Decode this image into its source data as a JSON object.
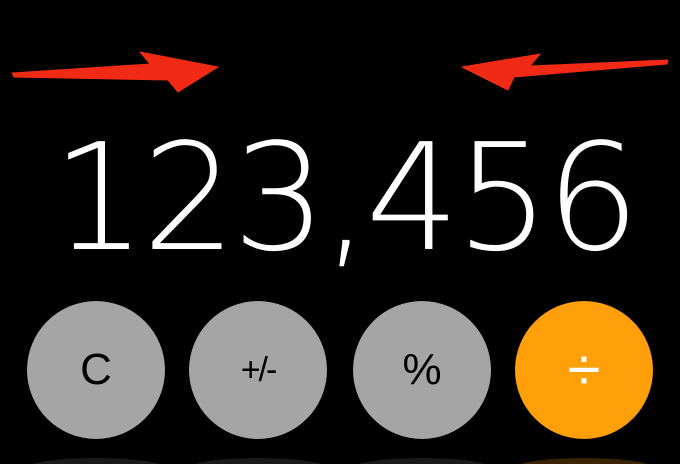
{
  "display": {
    "value": "123,456"
  },
  "keys": {
    "clear": "C",
    "plus_minus": "+/-",
    "percent": "%",
    "divide": "÷"
  },
  "colors": {
    "background": "#000000",
    "function_key": "#a5a5a5",
    "operator_key": "#ff9f0a",
    "display_text": "#ffffff",
    "annotation_arrow": "#f02a14"
  },
  "annotations": {
    "arrows": [
      "arrow-pointing-right",
      "arrow-pointing-left"
    ]
  }
}
